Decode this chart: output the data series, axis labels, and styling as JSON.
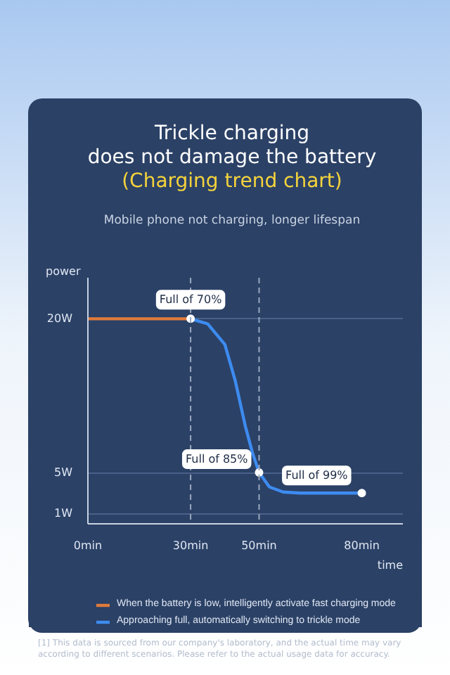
{
  "chart_data": {
    "type": "line",
    "title": "Trickle charging\ndoes not damage the battery\n(Charging trend chart)",
    "subtitle": "Mobile phone not charging, longer lifespan",
    "xlabel": "time",
    "ylabel": "power",
    "xlim": [
      0,
      92
    ],
    "ylim": [
      0,
      24
    ],
    "xticks": [
      {
        "value": 0,
        "label": "0min"
      },
      {
        "value": 30,
        "label": "30min"
      },
      {
        "value": 50,
        "label": "50min"
      },
      {
        "value": 80,
        "label": "80min"
      }
    ],
    "yticks": [
      {
        "value": 1,
        "label": "1W"
      },
      {
        "value": 5,
        "label": "5W"
      },
      {
        "value": 20,
        "label": "20W"
      }
    ],
    "grid": "y",
    "legend": "bottom",
    "line_style": "solid",
    "series": [
      {
        "name": "When the battery is low, intelligently activate fast charging mode",
        "color": "#e07b3a",
        "x": [
          0,
          30
        ],
        "values": [
          20,
          20
        ]
      },
      {
        "name": "Approaching full, automatically switching to trickle mode",
        "color": "#3d8bf0",
        "x": [
          30,
          35,
          40,
          43,
          46,
          48,
          50,
          53,
          57,
          62,
          70,
          80
        ],
        "values": [
          20,
          19.5,
          17.5,
          14,
          9.5,
          7,
          5,
          3.6,
          3.1,
          3,
          3,
          3
        ]
      }
    ],
    "ref_lines": [
      {
        "axis": "x",
        "value": 30,
        "line_style": "dashed"
      },
      {
        "axis": "x",
        "value": 50,
        "line_style": "dashed"
      }
    ],
    "annotations": [
      {
        "text": "Full of 70%",
        "x": 30,
        "y": 20
      },
      {
        "text": "Full of 85%",
        "x": 50,
        "y": 5
      },
      {
        "text": "Full of 99%",
        "x": 80,
        "y": 3
      },
      "[1] This data is sourced from our company's laboratory, and the actual time may vary according to different scenarios. Please refer to the actual usage data for accuracy."
    ]
  }
}
